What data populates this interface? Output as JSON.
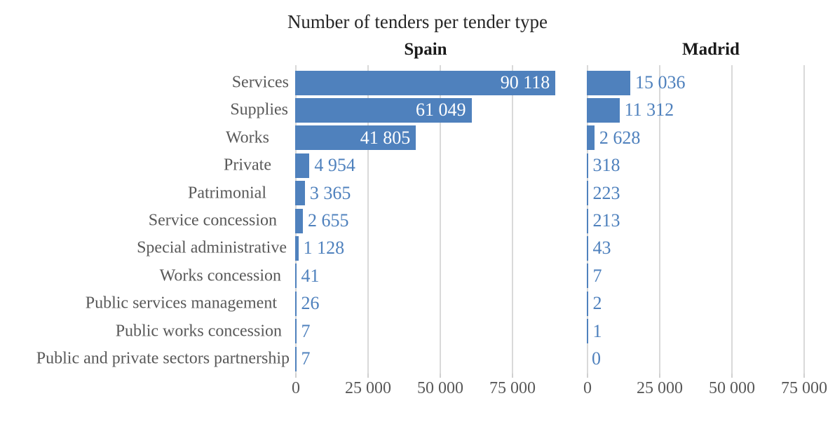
{
  "title": "Number of tenders per tender type",
  "chart_data": {
    "type": "bar",
    "orientation": "horizontal",
    "title": "Number of tenders per tender type",
    "categories": [
      "Services",
      "Supplies",
      "Works",
      "Private",
      "Patrimonial",
      "Service concession",
      "Special administrative",
      "Works concession",
      "Public services management",
      "Public works concession",
      "Public and private sectors partnership"
    ],
    "facets": [
      {
        "name": "Spain",
        "values": [
          90118,
          61049,
          41805,
          4954,
          3365,
          2655,
          1128,
          41,
          26,
          7,
          7
        ],
        "value_labels": [
          "90 118",
          "61 049",
          "41 805",
          "4 954",
          "3 365",
          "2 655",
          "1 128",
          "41",
          "26",
          "7",
          "7"
        ]
      },
      {
        "name": "Madrid",
        "values": [
          15036,
          11312,
          2628,
          318,
          223,
          213,
          43,
          7,
          2,
          1,
          0
        ],
        "value_labels": [
          "15 036",
          "11 312",
          "2 628",
          "318",
          "223",
          "213",
          "43",
          "7",
          "2",
          "1",
          "0"
        ]
      }
    ],
    "x_ticks": [
      0,
      25000,
      50000,
      75000
    ],
    "x_tick_labels": [
      "0",
      "25 000",
      "50 000",
      "75 000"
    ],
    "xlim": [
      0,
      90300
    ],
    "grid": "vertical",
    "legend": "none",
    "colors": {
      "bar": "#4f81bd",
      "value_label_outside": "#4f81bd",
      "value_label_inside": "#ffffff",
      "category_label": "#595959",
      "axis_tick_label": "#595959",
      "gridline": "#d9d9d9",
      "title": "#262626",
      "facet_title": "#1a1a1a",
      "background": "#ffffff"
    }
  }
}
